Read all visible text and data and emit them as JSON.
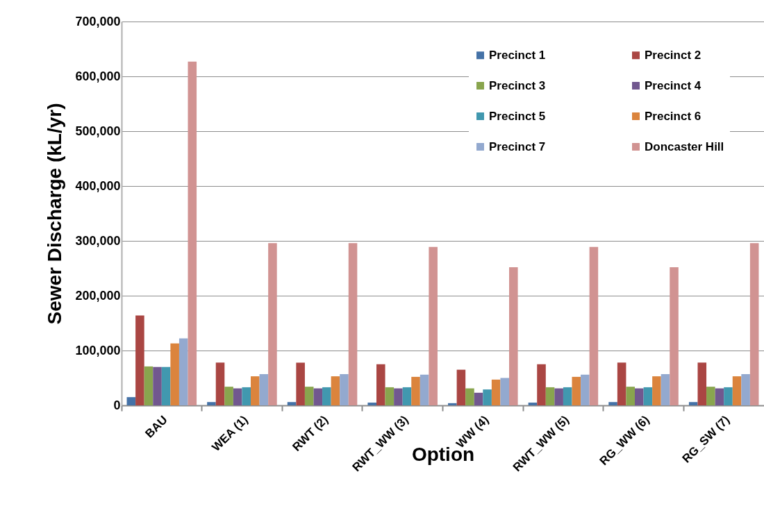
{
  "chart_data": {
    "type": "bar",
    "xlabel": "Option",
    "ylabel": "Sewer Discharge (kL/yr)",
    "categories": [
      "BAU",
      "WEA (1)",
      "RWT (2)",
      "RWT_WW (3)",
      "WW (4)",
      "RWT_WW (5)",
      "RG_WW (6)",
      "RG_SW (7)"
    ],
    "series": [
      {
        "name": "Precinct 1",
        "color": "#4572a7",
        "values": [
          15000,
          6000,
          6000,
          5000,
          4000,
          5000,
          6000,
          6000
        ]
      },
      {
        "name": "Precinct 2",
        "color": "#aa4643",
        "values": [
          164000,
          78000,
          78000,
          75000,
          65000,
          75000,
          78000,
          78000
        ]
      },
      {
        "name": "Precinct 3",
        "color": "#89a54e",
        "values": [
          71000,
          34000,
          34000,
          33000,
          31000,
          33000,
          34000,
          34000
        ]
      },
      {
        "name": "Precinct 4",
        "color": "#71588f",
        "values": [
          70000,
          31000,
          31000,
          31000,
          23000,
          31000,
          31000,
          31000
        ]
      },
      {
        "name": "Precinct 5",
        "color": "#4198af",
        "values": [
          70000,
          33000,
          33000,
          33000,
          29000,
          33000,
          33000,
          33000
        ]
      },
      {
        "name": "Precinct 6",
        "color": "#db843d",
        "values": [
          113000,
          53000,
          53000,
          52000,
          47000,
          52000,
          53000,
          53000
        ]
      },
      {
        "name": "Precinct 7",
        "color": "#93a9cf",
        "values": [
          122000,
          57000,
          57000,
          56000,
          50000,
          56000,
          57000,
          57000
        ]
      },
      {
        "name": "Doncaster Hill",
        "color": "#d19392",
        "values": [
          627000,
          296000,
          296000,
          289000,
          252000,
          289000,
          252000,
          296000
        ]
      }
    ],
    "ylim": [
      0,
      700000
    ],
    "yticks": [
      0,
      {
        "value": 100000,
        "label": "100,000"
      },
      {
        "value": 200000,
        "label": "200,000"
      },
      {
        "value": 300000,
        "label": "300,000"
      },
      {
        "value": 400000,
        "label": "400,000"
      },
      {
        "value": 500000,
        "label": "500,000"
      },
      {
        "value": 600000,
        "label": "600,000"
      },
      {
        "value": 700000,
        "label": "700,000"
      }
    ],
    "grid": "y",
    "legend": "top right"
  }
}
